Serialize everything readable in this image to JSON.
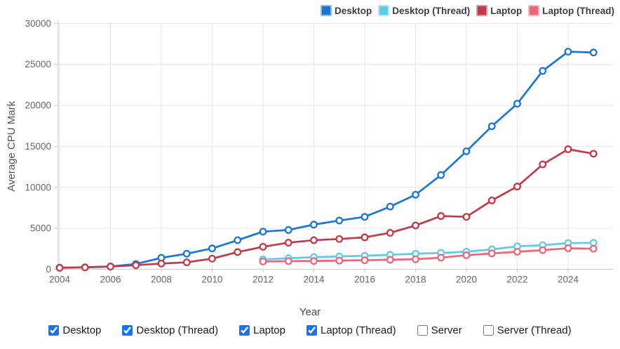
{
  "chart_data": {
    "type": "line",
    "title": "",
    "xlabel": "Year",
    "ylabel": "Average CPU Mark",
    "xlim": [
      2004,
      2025
    ],
    "ylim": [
      0,
      30000
    ],
    "x_ticks": [
      2004,
      2006,
      2008,
      2010,
      2012,
      2014,
      2016,
      2018,
      2020,
      2022,
      2024
    ],
    "y_ticks": [
      0,
      5000,
      10000,
      15000,
      20000,
      25000,
      30000
    ],
    "grid": true,
    "legend_position": "top-right",
    "marker": "open-circle",
    "series": [
      {
        "name": "Desktop",
        "color": "#1b76d2",
        "swatch_border": "#8abbe9",
        "x": [
          2004,
          2005,
          2006,
          2007,
          2008,
          2009,
          2010,
          2011,
          2012,
          2013,
          2014,
          2015,
          2016,
          2017,
          2018,
          2019,
          2020,
          2021,
          2022,
          2023,
          2024,
          2025
        ],
        "values": [
          200,
          250,
          350,
          650,
          1400,
          1900,
          2550,
          3550,
          4600,
          4800,
          5450,
          5950,
          6400,
          7650,
          9100,
          11500,
          14400,
          17450,
          20200,
          24200,
          26550,
          26450
        ]
      },
      {
        "name": "Desktop (Thread)",
        "color": "#5fcbe8",
        "swatch_border": "#b5e8f5",
        "x": [
          2012,
          2013,
          2014,
          2015,
          2016,
          2017,
          2018,
          2019,
          2020,
          2021,
          2022,
          2023,
          2024,
          2025
        ],
        "values": [
          1200,
          1350,
          1480,
          1570,
          1650,
          1770,
          1900,
          2000,
          2150,
          2430,
          2800,
          2940,
          3200,
          3230
        ]
      },
      {
        "name": "Laptop",
        "color": "#c13a4c",
        "swatch_border": "#de97a0",
        "x": [
          2004,
          2005,
          2006,
          2007,
          2008,
          2009,
          2010,
          2011,
          2012,
          2013,
          2014,
          2015,
          2016,
          2017,
          2018,
          2019,
          2020,
          2021,
          2022,
          2023,
          2024,
          2025
        ],
        "values": [
          180,
          230,
          330,
          500,
          700,
          850,
          1300,
          2100,
          2750,
          3250,
          3550,
          3700,
          3900,
          4450,
          5350,
          6500,
          6400,
          8400,
          10100,
          12800,
          14650,
          14100
        ]
      },
      {
        "name": "Laptop (Thread)",
        "color": "#f06478",
        "swatch_border": "#f9b4c0",
        "x": [
          2012,
          2013,
          2014,
          2015,
          2016,
          2017,
          2018,
          2019,
          2020,
          2021,
          2022,
          2023,
          2024,
          2025
        ],
        "values": [
          950,
          1000,
          1020,
          1060,
          1110,
          1170,
          1230,
          1420,
          1720,
          1940,
          2140,
          2340,
          2570,
          2510
        ]
      }
    ]
  },
  "controls": {
    "checkboxes": [
      {
        "label": "Desktop",
        "checked": true
      },
      {
        "label": "Desktop (Thread)",
        "checked": true
      },
      {
        "label": "Laptop",
        "checked": true
      },
      {
        "label": "Laptop (Thread)",
        "checked": true
      },
      {
        "label": "Server",
        "checked": false
      },
      {
        "label": "Server (Thread)",
        "checked": false
      }
    ]
  },
  "style": {
    "grid_color": "#e6e6e6",
    "axis_color": "#c9c9c9",
    "tick_label_color": "#666666",
    "axis_title_color": "#555555"
  }
}
